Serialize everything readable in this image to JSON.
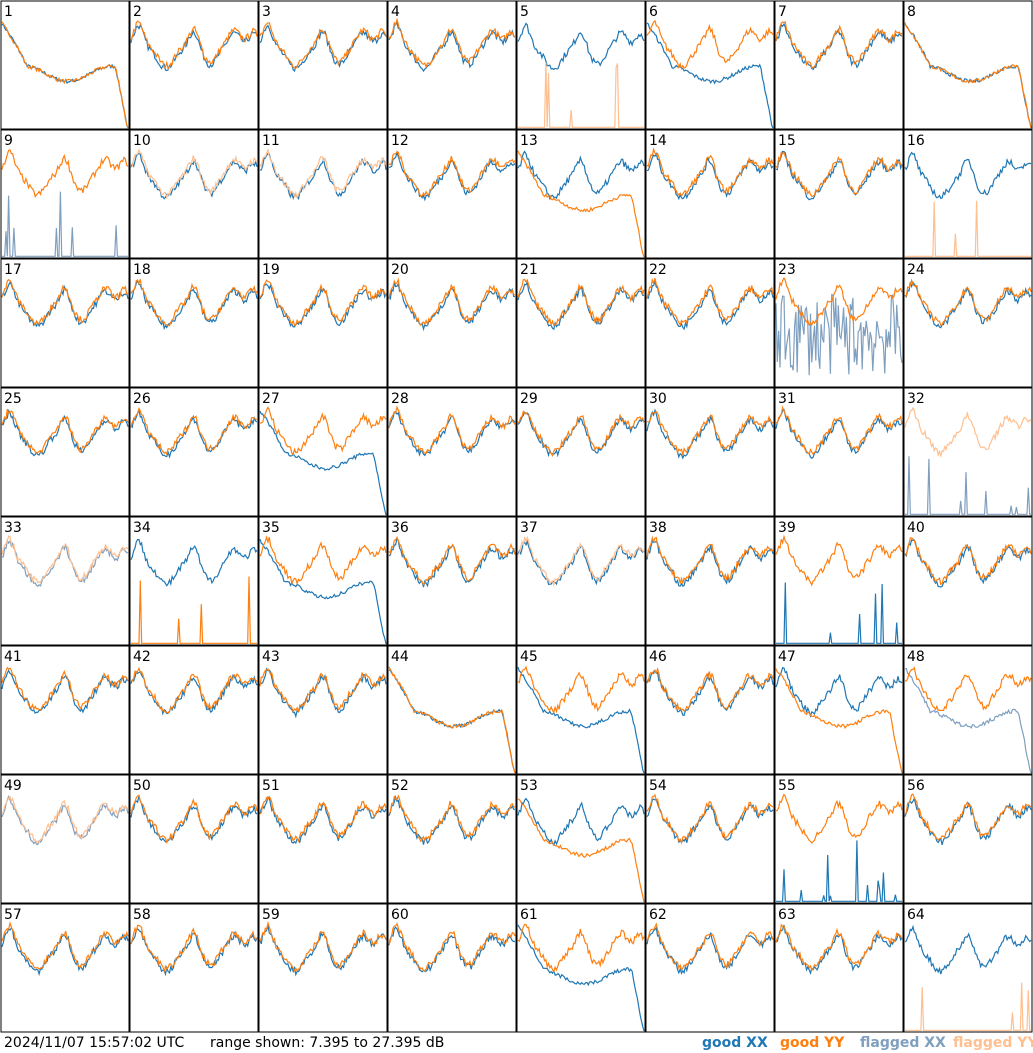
{
  "footer": {
    "timestamp": "2024/11/07 15:57:02 UTC",
    "range_text": "range shown: 7.395 to 27.395 dB"
  },
  "legend": [
    {
      "label": "good XX",
      "color": "#1f77b4"
    },
    {
      "label": "good YY",
      "color": "#ff7f0e"
    },
    {
      "label": "flagged XX",
      "color": "#7f9fbf"
    },
    {
      "label": "flagged YY",
      "color": "#ffbf8f"
    }
  ],
  "chart_data": {
    "type": "line",
    "layout": "8x8 grid of small-multiple spectra",
    "ylim": [
      7.395,
      27.395
    ],
    "y_unit": "dB",
    "series_names": [
      "good XX",
      "good YY",
      "flagged XX",
      "flagged YY"
    ],
    "colors": {
      "good XX": "#1f77b4",
      "good YY": "#ff7f0e",
      "flagged XX": "#7f9fbf",
      "flagged YY": "#ffbf8f"
    },
    "panels": [
      {
        "id": "1",
        "xx": {
          "flag": false,
          "shape": "droop"
        },
        "yy": {
          "flag": false,
          "shape": "droop"
        }
      },
      {
        "id": "2",
        "xx": {
          "flag": false,
          "shape": "sky"
        },
        "yy": {
          "flag": false,
          "shape": "sky"
        }
      },
      {
        "id": "3",
        "xx": {
          "flag": false,
          "shape": "sky"
        },
        "yy": {
          "flag": false,
          "shape": "sky"
        }
      },
      {
        "id": "4",
        "xx": {
          "flag": false,
          "shape": "sky"
        },
        "yy": {
          "flag": false,
          "shape": "sky"
        }
      },
      {
        "id": "5",
        "xx": {
          "flag": false,
          "shape": "sky"
        },
        "yy": {
          "flag": true,
          "shape": "spikes"
        }
      },
      {
        "id": "6",
        "xx": {
          "flag": false,
          "shape": "droop"
        },
        "yy": {
          "flag": false,
          "shape": "sky"
        }
      },
      {
        "id": "7",
        "xx": {
          "flag": false,
          "shape": "sky"
        },
        "yy": {
          "flag": false,
          "shape": "sky"
        }
      },
      {
        "id": "8",
        "xx": {
          "flag": false,
          "shape": "droop"
        },
        "yy": {
          "flag": false,
          "shape": "droop"
        }
      },
      {
        "id": "9",
        "xx": {
          "flag": true,
          "shape": "spikes"
        },
        "yy": {
          "flag": false,
          "shape": "sky"
        }
      },
      {
        "id": "10",
        "xx": {
          "flag": false,
          "shape": "sky"
        },
        "yy": {
          "flag": true,
          "shape": "sky"
        }
      },
      {
        "id": "11",
        "xx": {
          "flag": false,
          "shape": "sky"
        },
        "yy": {
          "flag": true,
          "shape": "sky"
        }
      },
      {
        "id": "12",
        "xx": {
          "flag": false,
          "shape": "sky"
        },
        "yy": {
          "flag": false,
          "shape": "sky"
        }
      },
      {
        "id": "13",
        "xx": {
          "flag": false,
          "shape": "sky"
        },
        "yy": {
          "flag": false,
          "shape": "droop"
        }
      },
      {
        "id": "14",
        "xx": {
          "flag": false,
          "shape": "sky"
        },
        "yy": {
          "flag": false,
          "shape": "sky"
        }
      },
      {
        "id": "15",
        "xx": {
          "flag": false,
          "shape": "sky"
        },
        "yy": {
          "flag": false,
          "shape": "sky"
        }
      },
      {
        "id": "16",
        "xx": {
          "flag": false,
          "shape": "sky"
        },
        "yy": {
          "flag": true,
          "shape": "spikes"
        }
      },
      {
        "id": "17",
        "xx": {
          "flag": false,
          "shape": "sky"
        },
        "yy": {
          "flag": false,
          "shape": "sky"
        }
      },
      {
        "id": "18",
        "xx": {
          "flag": false,
          "shape": "sky"
        },
        "yy": {
          "flag": false,
          "shape": "sky"
        }
      },
      {
        "id": "19",
        "xx": {
          "flag": false,
          "shape": "sky"
        },
        "yy": {
          "flag": false,
          "shape": "sky"
        }
      },
      {
        "id": "20",
        "xx": {
          "flag": false,
          "shape": "sky"
        },
        "yy": {
          "flag": false,
          "shape": "sky"
        }
      },
      {
        "id": "21",
        "xx": {
          "flag": false,
          "shape": "sky"
        },
        "yy": {
          "flag": false,
          "shape": "sky"
        }
      },
      {
        "id": "22",
        "xx": {
          "flag": false,
          "shape": "sky"
        },
        "yy": {
          "flag": false,
          "shape": "sky"
        }
      },
      {
        "id": "23",
        "xx": {
          "flag": true,
          "shape": "noise"
        },
        "yy": {
          "flag": false,
          "shape": "sky"
        }
      },
      {
        "id": "24",
        "xx": {
          "flag": false,
          "shape": "sky"
        },
        "yy": {
          "flag": false,
          "shape": "sky"
        }
      },
      {
        "id": "25",
        "xx": {
          "flag": false,
          "shape": "sky"
        },
        "yy": {
          "flag": false,
          "shape": "sky"
        }
      },
      {
        "id": "26",
        "xx": {
          "flag": false,
          "shape": "sky"
        },
        "yy": {
          "flag": false,
          "shape": "sky"
        }
      },
      {
        "id": "27",
        "xx": {
          "flag": false,
          "shape": "droop"
        },
        "yy": {
          "flag": false,
          "shape": "sky"
        }
      },
      {
        "id": "28",
        "xx": {
          "flag": false,
          "shape": "sky"
        },
        "yy": {
          "flag": false,
          "shape": "sky"
        }
      },
      {
        "id": "29",
        "xx": {
          "flag": false,
          "shape": "sky"
        },
        "yy": {
          "flag": false,
          "shape": "sky"
        }
      },
      {
        "id": "30",
        "xx": {
          "flag": false,
          "shape": "sky"
        },
        "yy": {
          "flag": false,
          "shape": "sky"
        }
      },
      {
        "id": "31",
        "xx": {
          "flag": false,
          "shape": "sky"
        },
        "yy": {
          "flag": false,
          "shape": "sky"
        }
      },
      {
        "id": "32",
        "xx": {
          "flag": true,
          "shape": "spikes"
        },
        "yy": {
          "flag": true,
          "shape": "sky"
        }
      },
      {
        "id": "33",
        "xx": {
          "flag": true,
          "shape": "sky"
        },
        "yy": {
          "flag": true,
          "shape": "sky"
        }
      },
      {
        "id": "34",
        "xx": {
          "flag": false,
          "shape": "sky"
        },
        "yy": {
          "flag": false,
          "shape": "spikes"
        }
      },
      {
        "id": "35",
        "xx": {
          "flag": false,
          "shape": "droop"
        },
        "yy": {
          "flag": false,
          "shape": "sky"
        }
      },
      {
        "id": "36",
        "xx": {
          "flag": false,
          "shape": "sky"
        },
        "yy": {
          "flag": false,
          "shape": "sky"
        }
      },
      {
        "id": "37",
        "xx": {
          "flag": false,
          "shape": "sky"
        },
        "yy": {
          "flag": true,
          "shape": "sky"
        }
      },
      {
        "id": "38",
        "xx": {
          "flag": false,
          "shape": "sky"
        },
        "yy": {
          "flag": false,
          "shape": "sky"
        }
      },
      {
        "id": "39",
        "xx": {
          "flag": false,
          "shape": "spikes"
        },
        "yy": {
          "flag": false,
          "shape": "sky"
        }
      },
      {
        "id": "40",
        "xx": {
          "flag": false,
          "shape": "sky"
        },
        "yy": {
          "flag": false,
          "shape": "sky"
        }
      },
      {
        "id": "41",
        "xx": {
          "flag": false,
          "shape": "sky"
        },
        "yy": {
          "flag": false,
          "shape": "sky"
        }
      },
      {
        "id": "42",
        "xx": {
          "flag": false,
          "shape": "sky"
        },
        "yy": {
          "flag": false,
          "shape": "sky"
        }
      },
      {
        "id": "43",
        "xx": {
          "flag": false,
          "shape": "sky"
        },
        "yy": {
          "flag": false,
          "shape": "sky"
        }
      },
      {
        "id": "44",
        "xx": {
          "flag": false,
          "shape": "droop"
        },
        "yy": {
          "flag": false,
          "shape": "droop"
        }
      },
      {
        "id": "45",
        "xx": {
          "flag": false,
          "shape": "droop"
        },
        "yy": {
          "flag": false,
          "shape": "sky"
        }
      },
      {
        "id": "46",
        "xx": {
          "flag": false,
          "shape": "sky"
        },
        "yy": {
          "flag": false,
          "shape": "sky"
        }
      },
      {
        "id": "47",
        "xx": {
          "flag": false,
          "shape": "sky"
        },
        "yy": {
          "flag": false,
          "shape": "droop"
        }
      },
      {
        "id": "48",
        "xx": {
          "flag": true,
          "shape": "droop"
        },
        "yy": {
          "flag": false,
          "shape": "sky"
        }
      },
      {
        "id": "49",
        "xx": {
          "flag": true,
          "shape": "sky"
        },
        "yy": {
          "flag": true,
          "shape": "sky"
        }
      },
      {
        "id": "50",
        "xx": {
          "flag": false,
          "shape": "sky"
        },
        "yy": {
          "flag": false,
          "shape": "sky"
        }
      },
      {
        "id": "51",
        "xx": {
          "flag": false,
          "shape": "sky"
        },
        "yy": {
          "flag": false,
          "shape": "sky"
        }
      },
      {
        "id": "52",
        "xx": {
          "flag": false,
          "shape": "sky"
        },
        "yy": {
          "flag": false,
          "shape": "sky"
        }
      },
      {
        "id": "53",
        "xx": {
          "flag": false,
          "shape": "sky"
        },
        "yy": {
          "flag": false,
          "shape": "droop"
        }
      },
      {
        "id": "54",
        "xx": {
          "flag": false,
          "shape": "sky"
        },
        "yy": {
          "flag": false,
          "shape": "sky"
        }
      },
      {
        "id": "55",
        "xx": {
          "flag": false,
          "shape": "spikes"
        },
        "yy": {
          "flag": false,
          "shape": "sky"
        }
      },
      {
        "id": "56",
        "xx": {
          "flag": false,
          "shape": "sky"
        },
        "yy": {
          "flag": false,
          "shape": "sky"
        }
      },
      {
        "id": "57",
        "xx": {
          "flag": false,
          "shape": "sky"
        },
        "yy": {
          "flag": false,
          "shape": "sky"
        }
      },
      {
        "id": "58",
        "xx": {
          "flag": false,
          "shape": "sky"
        },
        "yy": {
          "flag": false,
          "shape": "sky"
        }
      },
      {
        "id": "59",
        "xx": {
          "flag": false,
          "shape": "sky"
        },
        "yy": {
          "flag": false,
          "shape": "sky"
        }
      },
      {
        "id": "60",
        "xx": {
          "flag": false,
          "shape": "sky"
        },
        "yy": {
          "flag": false,
          "shape": "sky"
        }
      },
      {
        "id": "61",
        "xx": {
          "flag": false,
          "shape": "droop"
        },
        "yy": {
          "flag": false,
          "shape": "sky"
        }
      },
      {
        "id": "62",
        "xx": {
          "flag": false,
          "shape": "sky"
        },
        "yy": {
          "flag": false,
          "shape": "sky"
        }
      },
      {
        "id": "63",
        "xx": {
          "flag": false,
          "shape": "sky"
        },
        "yy": {
          "flag": false,
          "shape": "sky"
        }
      },
      {
        "id": "64",
        "xx": {
          "flag": false,
          "shape": "sky"
        },
        "yy": {
          "flag": true,
          "shape": "spikes"
        }
      }
    ]
  }
}
